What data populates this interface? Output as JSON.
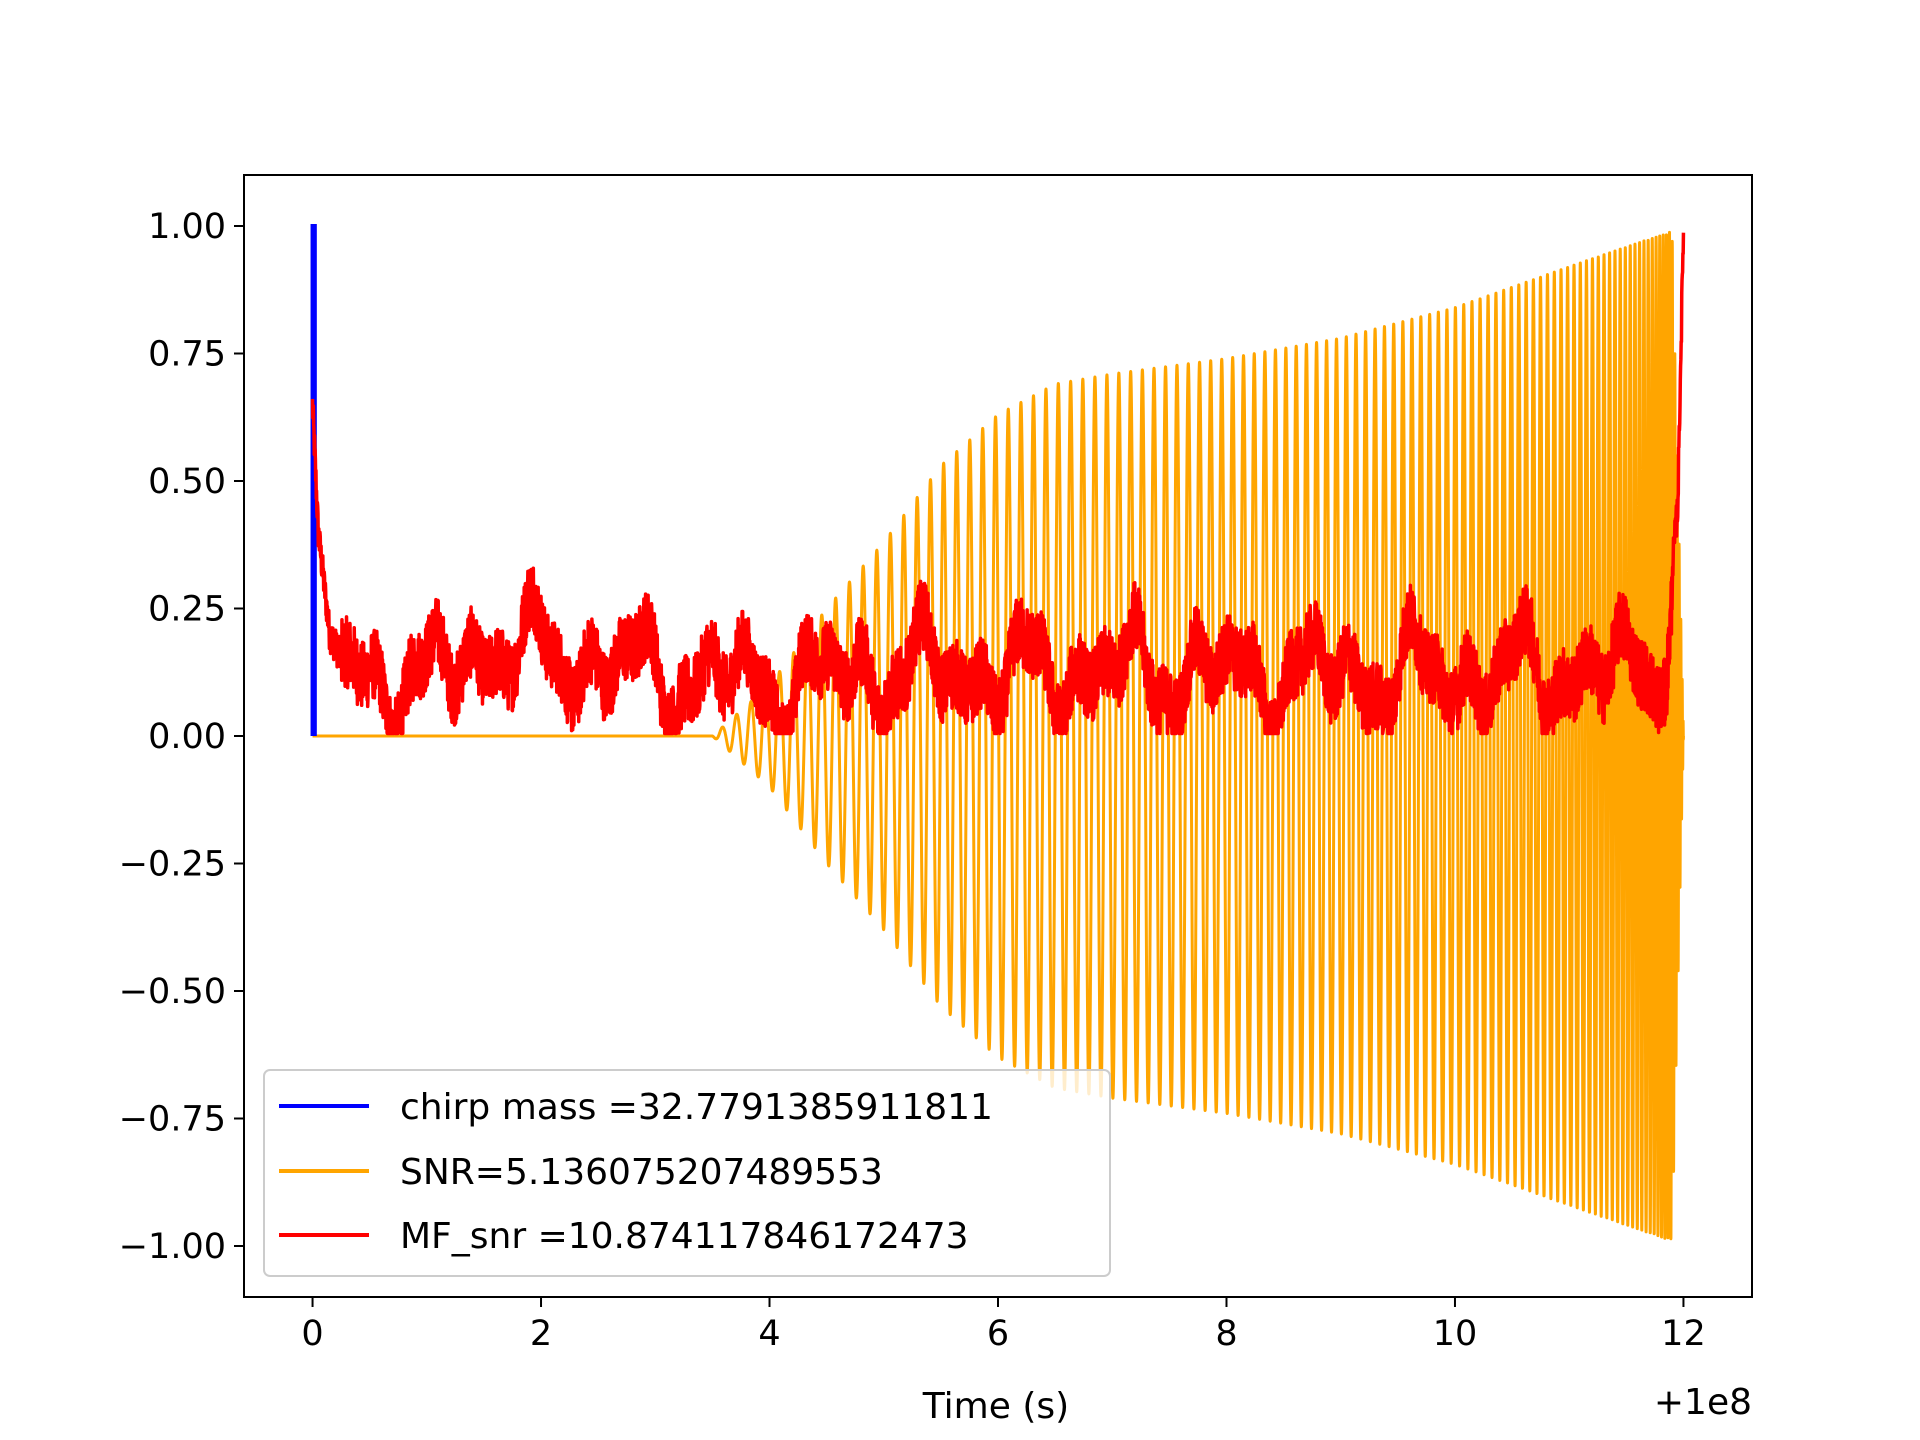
{
  "chart_data": {
    "type": "line",
    "title": "",
    "xlabel": "Time (s)",
    "ylabel": "",
    "x_offset_label": "+1e8",
    "xlim": [
      -0.6,
      12.6
    ],
    "ylim": [
      -1.1,
      1.1
    ],
    "xticks": [
      0,
      2,
      4,
      6,
      8,
      10,
      12
    ],
    "xtick_labels": [
      "0",
      "2",
      "4",
      "6",
      "8",
      "10",
      "12"
    ],
    "yticks": [
      1.0,
      0.75,
      0.5,
      0.25,
      0.0,
      -0.25,
      -0.5,
      -0.75,
      -1.0
    ],
    "ytick_labels": [
      "1.00",
      "0.75",
      "0.50",
      "0.25",
      "0.00",
      "−0.25",
      "−0.50",
      "−0.75",
      "−1.00"
    ],
    "grid": false,
    "legend_position": "lower-left",
    "series": [
      {
        "name": "chirp mass =32.7791385911811",
        "color": "#0000ff",
        "description_points": {
          "x": [
            0.0,
            0.0,
            0.02,
            0.02
          ],
          "y": [
            0.0,
            1.0,
            1.0,
            0.0
          ]
        }
      },
      {
        "name": "SNR=5.136075207489553",
        "color": "#ffa500",
        "x_range": [
          0.0,
          12.0
        ],
        "envelope": {
          "x": [
            0.0,
            3.5,
            4.0,
            4.5,
            5.0,
            5.5,
            6.0,
            6.5,
            7.0,
            8.0,
            9.0,
            10.0,
            11.0,
            11.9,
            12.0
          ],
          "y": [
            0.0,
            0.0,
            0.1,
            0.25,
            0.38,
            0.53,
            0.63,
            0.69,
            0.71,
            0.74,
            0.78,
            0.84,
            0.92,
            0.99,
            0.0
          ]
        }
      },
      {
        "name": "MF_snr =10.874117846172473",
        "color": "#ff0000",
        "x_range": [
          0.0,
          12.0
        ],
        "baseline": {
          "x": [
            0.0,
            0.05,
            0.15,
            0.3,
            1.0,
            1.4,
            1.75,
            3.2,
            4.0,
            5.0,
            6.0,
            7.0,
            8.0,
            9.0,
            10.0,
            11.0,
            11.7,
            11.85,
            11.95,
            12.0
          ],
          "y": [
            0.65,
            0.4,
            0.2,
            0.13,
            0.1,
            0.17,
            0.17,
            0.12,
            0.1,
            0.13,
            0.12,
            0.13,
            0.12,
            0.12,
            0.12,
            0.13,
            0.12,
            0.2,
            0.45,
            1.0
          ]
        }
      }
    ]
  }
}
